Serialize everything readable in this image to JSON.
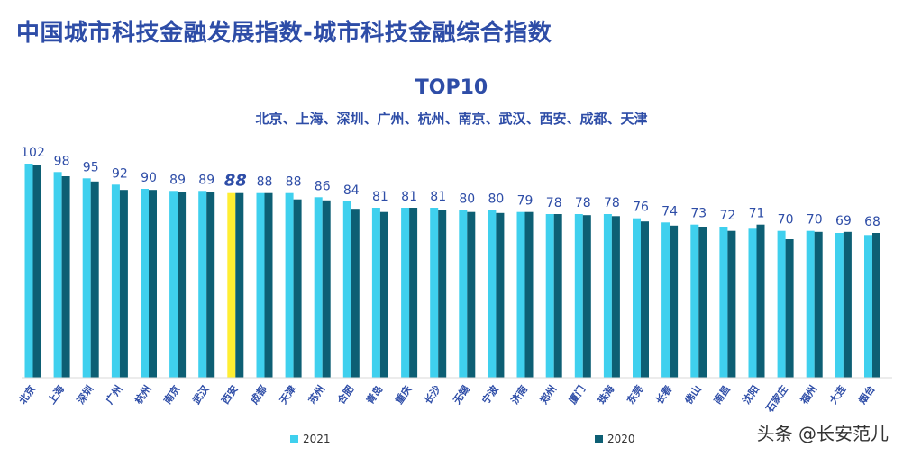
{
  "header": {
    "main_title": "中国城市科技金融发展指数-城市科技金融综合指数",
    "watermark": "头条 @长安范儿"
  },
  "chart_data": {
    "type": "bar",
    "title": "TOP10",
    "subtitle": "北京、上海、深圳、广州、杭州、南京、武汉、西安、成都、天津",
    "categories": [
      "北京",
      "上海",
      "深圳",
      "广州",
      "杭州",
      "南京",
      "武汉",
      "西安",
      "成都",
      "天津",
      "苏州",
      "合肥",
      "青岛",
      "重庆",
      "长沙",
      "无锡",
      "宁波",
      "济南",
      "郑州",
      "厦门",
      "珠海",
      "东莞",
      "长春",
      "佛山",
      "南昌",
      "沈阳",
      "石家庄",
      "福州",
      "大连",
      "烟台"
    ],
    "series": [
      {
        "name": "2021",
        "color": "#3fd0ee",
        "values": [
          102,
          98,
          95,
          92,
          90,
          89,
          89,
          88,
          88,
          88,
          86,
          84,
          81,
          81,
          81,
          80,
          80,
          79,
          78,
          78,
          78,
          76,
          74,
          73,
          72,
          71,
          70,
          70,
          69,
          68
        ]
      },
      {
        "name": "2020",
        "color": "#0d5f74",
        "values": [
          101.5,
          96,
          93.5,
          89.5,
          89.5,
          88.5,
          88.5,
          88,
          88,
          85,
          84.5,
          80.5,
          79,
          81,
          80,
          79,
          78.5,
          79,
          78,
          77.5,
          77,
          74.5,
          72.5,
          72,
          70,
          73,
          66,
          69.5,
          69.5,
          69
        ]
      }
    ],
    "highlight": {
      "category": "西安",
      "color": "#ffee33",
      "label_color": "#2e4da7"
    },
    "label_color": "#2e4da7",
    "legend_placement": "bottom",
    "grid": false
  }
}
